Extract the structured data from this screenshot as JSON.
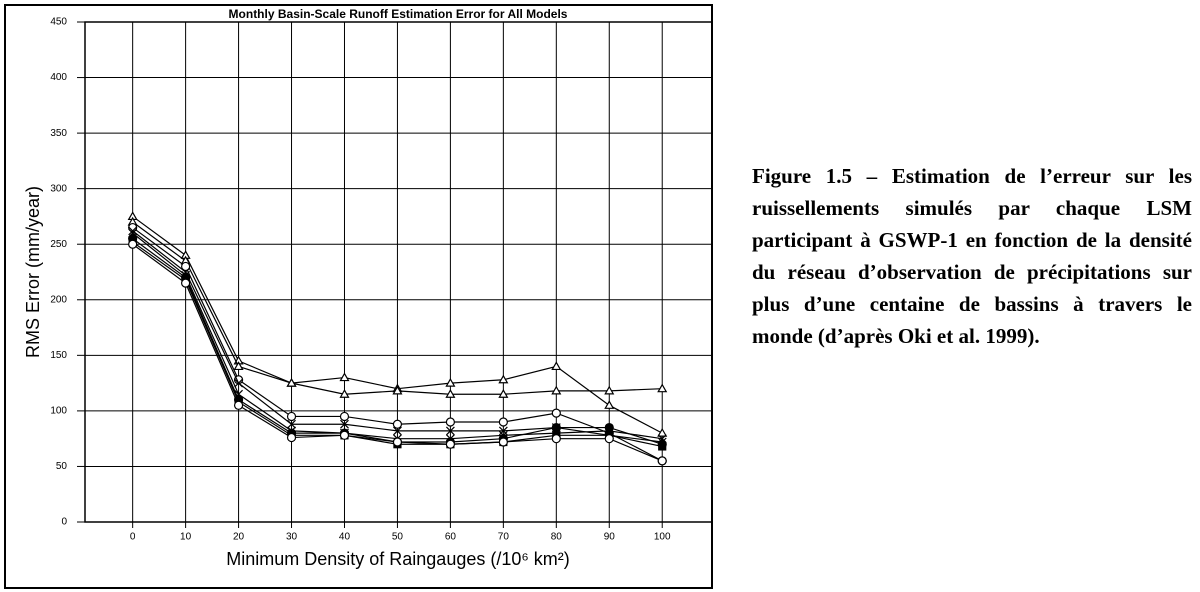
{
  "chart_data": {
    "type": "line",
    "title": "Monthly Basin-Scale Runoff Estimation Error for All Models",
    "xlabel": "Minimum Density of Raingauges (/10⁶ km²)",
    "ylabel": "RMS Error (mm/year)",
    "x": [
      0,
      10,
      20,
      30,
      40,
      50,
      60,
      70,
      80,
      90,
      100
    ],
    "xlim": [
      -9,
      109.4
    ],
    "xticks": [
      0,
      10,
      20,
      30,
      40,
      50,
      60,
      70,
      80,
      90,
      100
    ],
    "ylim": [
      0,
      450
    ],
    "yticks": [
      0,
      50,
      100,
      150,
      200,
      250,
      300,
      350,
      400,
      450
    ],
    "grid": true,
    "series": [
      {
        "color": "#000000",
        "marker": "triangle",
        "values": [
          275,
          240,
          145,
          125,
          130,
          120,
          125,
          128,
          140,
          105,
          80
        ]
      },
      {
        "color": "#000000",
        "marker": "triangle",
        "values": [
          270,
          235,
          140,
          125,
          115,
          118,
          115,
          115,
          118,
          118,
          120
        ]
      },
      {
        "color": "#000000",
        "marker": "circle",
        "values": [
          265,
          230,
          128,
          95,
          95,
          88,
          90,
          90,
          98,
          80,
          55
        ]
      },
      {
        "color": "#000000",
        "marker": "cross",
        "values": [
          262,
          225,
          125,
          88,
          88,
          82,
          82,
          82,
          85,
          78,
          72
        ]
      },
      {
        "color": "#000000",
        "marker": "filled-circle",
        "values": [
          255,
          220,
          110,
          80,
          80,
          72,
          72,
          75,
          85,
          85,
          70
        ]
      },
      {
        "color": "#000000",
        "marker": "filled-square",
        "values": [
          252,
          218,
          108,
          78,
          78,
          70,
          70,
          72,
          78,
          78,
          68
        ]
      },
      {
        "color": "#000000",
        "marker": "cross",
        "values": [
          260,
          222,
          115,
          82,
          80,
          75,
          75,
          78,
          80,
          82,
          75
        ]
      },
      {
        "color": "#000000",
        "marker": "circle",
        "values": [
          250,
          215,
          105,
          76,
          78,
          72,
          70,
          72,
          75,
          75,
          55
        ]
      }
    ]
  },
  "caption": "Figure 1.5 – Estimation de l’erreur sur les ruissellements simulés par chaque LSM participant à GSWP-1 en fonction de la densité du réseau d’observation de précipitations sur plus d’une centaine de bassins à travers le monde (d’après Oki et al. 1999)."
}
